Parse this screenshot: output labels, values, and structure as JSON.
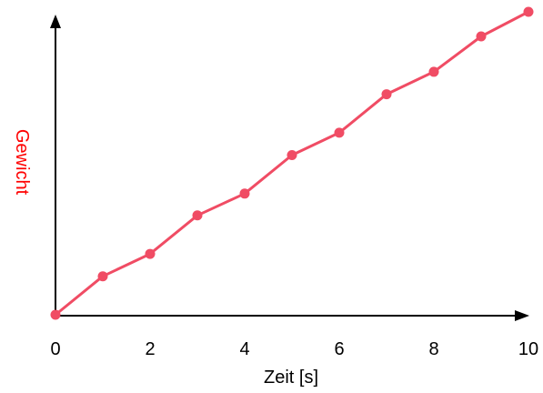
{
  "chart_data": {
    "type": "line",
    "xlabel": "Zeit [s]",
    "ylabel": "Gewicht",
    "xlim": [
      0,
      10
    ],
    "ylim": [
      0,
      10
    ],
    "grid": false,
    "x_ticks": [
      "0",
      "2",
      "4",
      "6",
      "8",
      "10"
    ],
    "series": [
      {
        "x": [
          0,
          1,
          2,
          3,
          4,
          5,
          6,
          7,
          8,
          9,
          10
        ],
        "y": [
          0,
          1.27,
          2.01,
          3.28,
          4.0,
          5.27,
          6.01,
          7.28,
          8.02,
          9.19,
          10.0
        ]
      }
    ],
    "colors": {
      "line": "#f04c64",
      "ylabel": "#ff0000",
      "axis": "#000000"
    }
  }
}
